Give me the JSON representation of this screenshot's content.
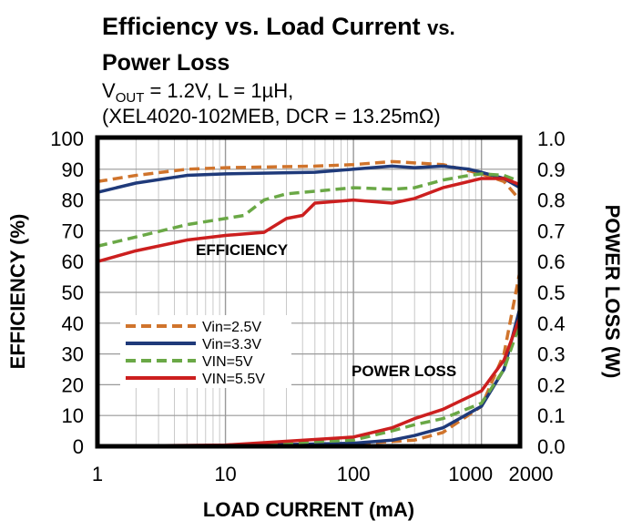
{
  "chart_data": {
    "type": "line",
    "title_line1": "Efficiency vs. Load Current",
    "title_line1_suffix": "vs.",
    "title_line2": "Power Loss",
    "subtitle_vout_prefix": "V",
    "subtitle_vout_sub": "OUT",
    "subtitle_line1_rest": " = 1.2V, L = 1µH,",
    "subtitle_line2": "(XEL4020-102MEB, DCR = 13.25mΩ)",
    "xlabel": "LOAD CURRENT (mA)",
    "ylabel_left": "EFFICIENCY (%)",
    "ylabel_right": "POWER LOSS (W)",
    "x_scale": "log",
    "xlim": [
      1,
      2000
    ],
    "ylim_left": [
      0,
      100
    ],
    "ylim_right": [
      0,
      1.0
    ],
    "x_ticks": [
      "1",
      "10",
      "100",
      "1000",
      "2000"
    ],
    "y_left_ticks": [
      "0",
      "10",
      "20",
      "30",
      "40",
      "50",
      "60",
      "70",
      "80",
      "90",
      "100"
    ],
    "y_right_ticks": [
      "0.0",
      "0.1",
      "0.2",
      "0.3",
      "0.4",
      "0.5",
      "0.6",
      "0.7",
      "0.8",
      "0.9",
      "1.0"
    ],
    "grid": true,
    "legend_position": "center-left",
    "annotations": [
      "EFFICIENCY",
      "POWER LOSS"
    ],
    "series": [
      {
        "name": "Vin=2.5V",
        "color": "#d0742c",
        "dash": true,
        "efficiency": [
          [
            1,
            86
          ],
          [
            2,
            88
          ],
          [
            5,
            90
          ],
          [
            10,
            90.5
          ],
          [
            50,
            91
          ],
          [
            100,
            91.5
          ],
          [
            200,
            92.5
          ],
          [
            500,
            91.5
          ],
          [
            1000,
            88.5
          ],
          [
            1500,
            86
          ],
          [
            2000,
            80
          ]
        ],
        "power_loss": [
          [
            1,
            0
          ],
          [
            10,
            0.002
          ],
          [
            100,
            0.008
          ],
          [
            300,
            0.02
          ],
          [
            500,
            0.045
          ],
          [
            1000,
            0.13
          ],
          [
            1500,
            0.3
          ],
          [
            2000,
            0.57
          ]
        ]
      },
      {
        "name": "Vin=3.3V",
        "color": "#1f3a7a",
        "dash": false,
        "efficiency": [
          [
            1,
            82.5
          ],
          [
            2,
            85.5
          ],
          [
            5,
            88
          ],
          [
            10,
            88.5
          ],
          [
            50,
            89
          ],
          [
            100,
            90
          ],
          [
            200,
            91
          ],
          [
            300,
            90.5
          ],
          [
            500,
            91
          ],
          [
            800,
            90
          ],
          [
            1000,
            89
          ],
          [
            1500,
            87
          ],
          [
            2000,
            84
          ]
        ],
        "power_loss": [
          [
            1,
            0
          ],
          [
            10,
            0.002
          ],
          [
            100,
            0.01
          ],
          [
            200,
            0.02
          ],
          [
            300,
            0.035
          ],
          [
            500,
            0.06
          ],
          [
            1000,
            0.13
          ],
          [
            1500,
            0.25
          ],
          [
            2000,
            0.45
          ]
        ]
      },
      {
        "name": "VIN=5V",
        "color": "#6aa846",
        "dash": true,
        "efficiency": [
          [
            1,
            65
          ],
          [
            2,
            68
          ],
          [
            5,
            72
          ],
          [
            10,
            74
          ],
          [
            14,
            75
          ],
          [
            20,
            80
          ],
          [
            30,
            82
          ],
          [
            100,
            84
          ],
          [
            200,
            83.5
          ],
          [
            300,
            84
          ],
          [
            500,
            86.5
          ],
          [
            800,
            88
          ],
          [
            1000,
            88.5
          ],
          [
            1500,
            88
          ],
          [
            2000,
            86
          ]
        ],
        "power_loss": [
          [
            1,
            0
          ],
          [
            10,
            0.003
          ],
          [
            100,
            0.02
          ],
          [
            200,
            0.05
          ],
          [
            300,
            0.07
          ],
          [
            500,
            0.09
          ],
          [
            1000,
            0.14
          ],
          [
            1500,
            0.25
          ],
          [
            2000,
            0.4
          ]
        ]
      },
      {
        "name": "VIN=5.5V",
        "color": "#cc1f1f",
        "dash": false,
        "efficiency": [
          [
            1,
            60
          ],
          [
            2,
            63.5
          ],
          [
            5,
            67
          ],
          [
            10,
            68.5
          ],
          [
            20,
            69.5
          ],
          [
            30,
            74
          ],
          [
            40,
            75
          ],
          [
            50,
            79
          ],
          [
            100,
            80
          ],
          [
            200,
            79
          ],
          [
            300,
            80.5
          ],
          [
            500,
            84
          ],
          [
            1000,
            87
          ],
          [
            1500,
            87
          ],
          [
            2000,
            85
          ]
        ],
        "power_loss": [
          [
            1,
            0
          ],
          [
            10,
            0.004
          ],
          [
            100,
            0.03
          ],
          [
            200,
            0.06
          ],
          [
            300,
            0.09
          ],
          [
            500,
            0.12
          ],
          [
            1000,
            0.18
          ],
          [
            1500,
            0.28
          ],
          [
            2000,
            0.42
          ]
        ]
      }
    ]
  }
}
